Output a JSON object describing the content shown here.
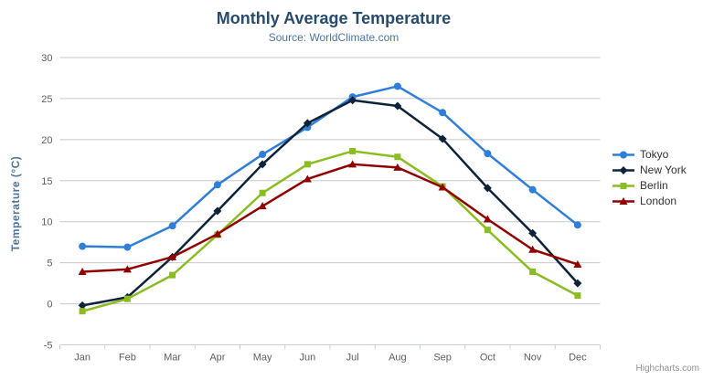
{
  "chart_data": {
    "type": "line",
    "title": "Monthly Average Temperature",
    "subtitle": "Source: WorldClimate.com",
    "ylabel": "Temperature (°C)",
    "xlabel": "",
    "ylim": [
      -5,
      30
    ],
    "yticks": [
      -5,
      0,
      5,
      10,
      15,
      20,
      25,
      30
    ],
    "grid": true,
    "legend_position": "right",
    "categories": [
      "Jan",
      "Feb",
      "Mar",
      "Apr",
      "May",
      "Jun",
      "Jul",
      "Aug",
      "Sep",
      "Oct",
      "Nov",
      "Dec"
    ],
    "series": [
      {
        "name": "Tokyo",
        "color": "#2f7ed8",
        "marker": "circle",
        "values": [
          7.0,
          6.9,
          9.5,
          14.5,
          18.2,
          21.5,
          25.2,
          26.5,
          23.3,
          18.3,
          13.9,
          9.6
        ]
      },
      {
        "name": "New York",
        "color": "#0d233a",
        "marker": "diamond",
        "values": [
          -0.2,
          0.8,
          5.7,
          11.3,
          17.0,
          22.0,
          24.8,
          24.1,
          20.1,
          14.1,
          8.6,
          2.5
        ]
      },
      {
        "name": "Berlin",
        "color": "#8bbc21",
        "marker": "square",
        "values": [
          -0.9,
          0.6,
          3.5,
          8.4,
          13.5,
          17.0,
          18.6,
          17.9,
          14.3,
          9.0,
          3.9,
          1.0
        ]
      },
      {
        "name": "London",
        "color": "#910000",
        "marker": "triangle",
        "values": [
          3.9,
          4.2,
          5.7,
          8.5,
          11.9,
          15.2,
          17.0,
          16.6,
          14.2,
          10.3,
          6.6,
          4.8
        ]
      }
    ],
    "credits": "Highcharts.com",
    "axis_colors": {
      "grid_line": "#c8c8c8",
      "x_axis_line": "#c0d0e0",
      "tick": "#c0d0e0",
      "label_text": "#606060"
    }
  }
}
